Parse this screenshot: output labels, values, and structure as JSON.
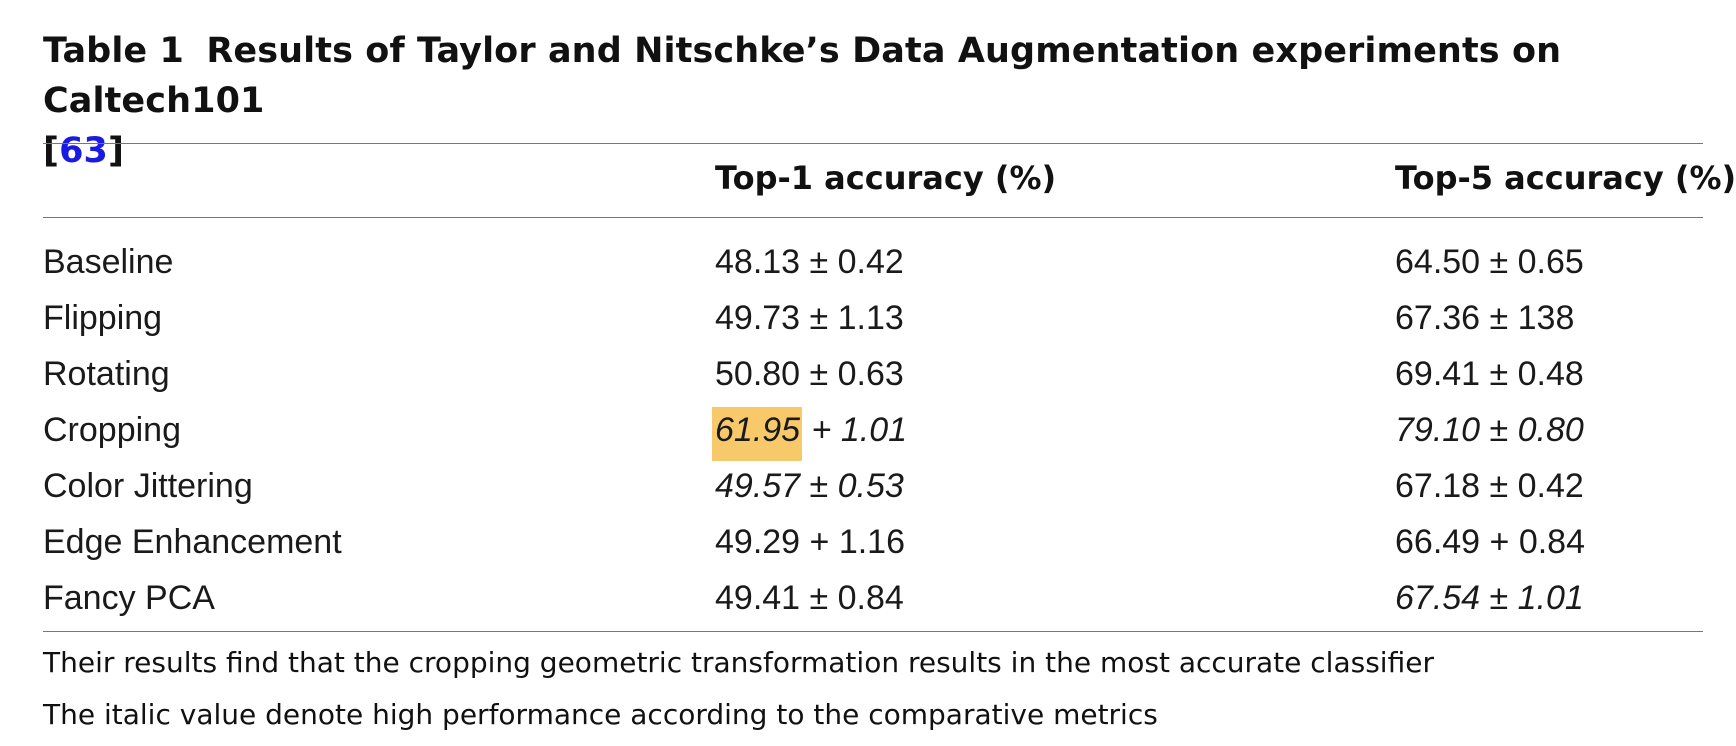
{
  "caption": {
    "label": "Table 1",
    "text": "Results of Taylor and Nitschke’s Data Augmentation experiments on Caltech101",
    "ref_open": "[",
    "ref": "63",
    "ref_close": "]"
  },
  "table": {
    "columns": [
      "",
      "Top-1 accuracy (%)",
      "Top-5 accuracy (%)"
    ],
    "rows": [
      {
        "name": "Baseline",
        "top1": "48.13 ± 0.42",
        "top5": "64.50 ± 0.65",
        "top1_italic": false,
        "top5_italic": false
      },
      {
        "name": "Flipping",
        "top1": "49.73 ± 1.13",
        "top5": "67.36 ± 138",
        "top1_italic": false,
        "top5_italic": false
      },
      {
        "name": "Rotating",
        "top1": "50.80 ± 0.63",
        "top5": "69.41 ± 0.48",
        "top1_italic": false,
        "top5_italic": false
      },
      {
        "name": "Cropping",
        "top1_hl": "61.95",
        "top1_rest": " + 1.01",
        "top5": "79.10 ± 0.80",
        "top1_italic": true,
        "top5_italic": true
      },
      {
        "name": "Color Jittering",
        "top1": "49.57 ± 0.53",
        "top5": "67.18 ± 0.42",
        "top1_italic": true,
        "top5_italic": false
      },
      {
        "name": "Edge Enhancement",
        "top1": "49.29 + 1.16",
        "top5": "66.49 + 0.84",
        "top1_italic": false,
        "top5_italic": false
      },
      {
        "name": "Fancy PCA",
        "top1": "49.41 ± 0.84",
        "top5": "67.54 ± 1.01",
        "top1_italic": false,
        "top5_italic": true
      }
    ],
    "highlight_color": "#f8c96a"
  },
  "notes": [
    "Their results find that the cropping geometric transformation results in the most accurate classifier",
    "The italic value denote high performance according to the comparative metrics"
  ]
}
